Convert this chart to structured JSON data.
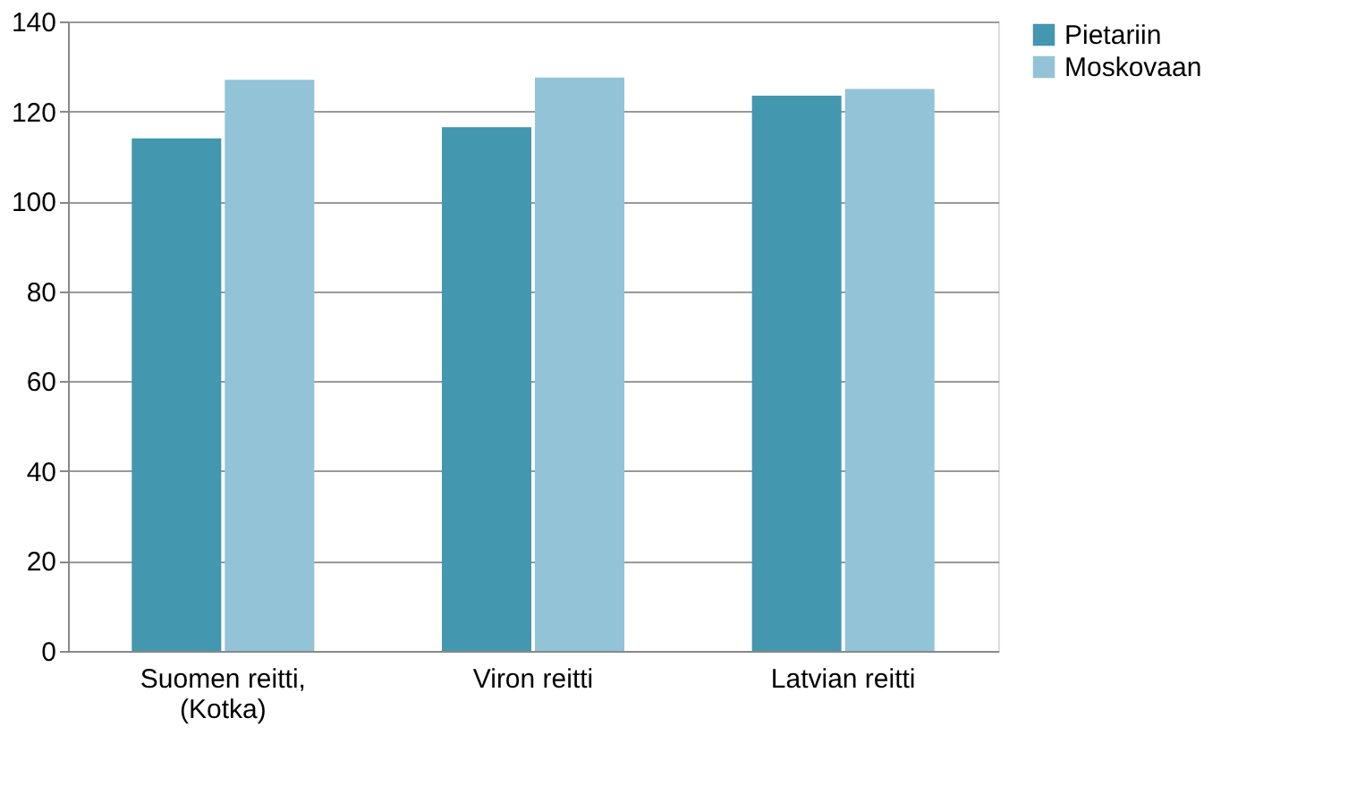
{
  "chart_data": {
    "type": "bar",
    "categories": [
      "Suomen reitti,\n(Kotka)",
      "Viron reitti",
      "Latvian reitti"
    ],
    "series": [
      {
        "name": "Pietariin",
        "color": "#4397ae",
        "values": [
          114,
          116.5,
          123.5
        ]
      },
      {
        "name": "Moskovaan",
        "color": "#93c3d6",
        "values": [
          127,
          127.5,
          125
        ]
      }
    ],
    "ylim": [
      0,
      140
    ],
    "yticks": [
      0,
      20,
      40,
      60,
      80,
      100,
      120,
      140
    ],
    "grid": "y",
    "legend": "right"
  }
}
